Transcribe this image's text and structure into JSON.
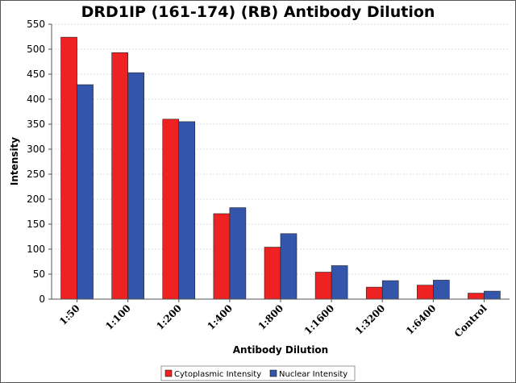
{
  "chart_data": {
    "type": "bar",
    "title": "DRD1IP (161-174) (RB) Antibody Dilution",
    "xlabel": "Antibody Dilution",
    "ylabel": "Intensity",
    "ylim": [
      0,
      550
    ],
    "yticks": [
      0,
      50,
      100,
      150,
      200,
      250,
      300,
      350,
      400,
      450,
      500,
      550
    ],
    "grid": true,
    "legend_position": "bottom-center",
    "categories": [
      "1:50",
      "1:100",
      "1:200",
      "1:400",
      "1:800",
      "1:1600",
      "1:3200",
      "1:6400",
      "Control"
    ],
    "series": [
      {
        "name": "Cytoplasmic Intensity",
        "color": "#ee2222",
        "values": [
          524,
          493,
          360,
          171,
          104,
          54,
          24,
          28,
          12
        ]
      },
      {
        "name": "Nuclear Intensity",
        "color": "#3355aa",
        "values": [
          429,
          453,
          355,
          183,
          131,
          67,
          37,
          38,
          16
        ]
      }
    ]
  }
}
